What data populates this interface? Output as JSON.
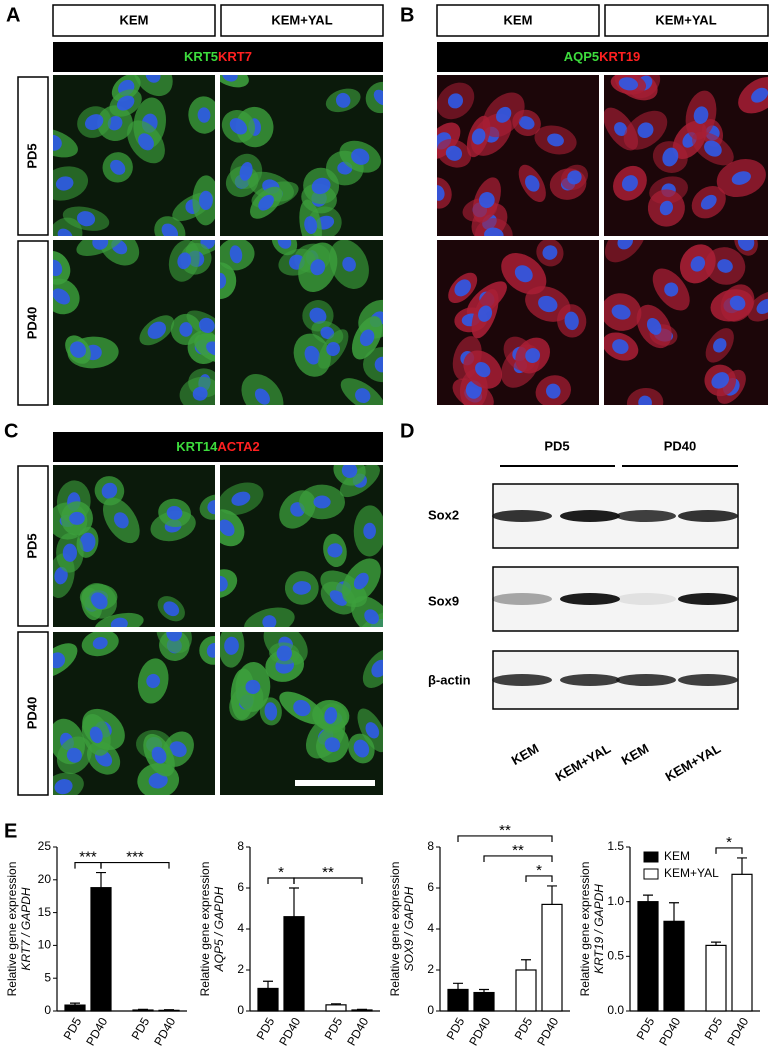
{
  "panels": {
    "A": {
      "label": "A",
      "columns": [
        "KEM",
        "KEM+YAL"
      ],
      "stain": [
        "KRT5",
        "KRT7"
      ],
      "rows": [
        "PD5",
        "PD40"
      ]
    },
    "B": {
      "label": "B",
      "columns": [
        "KEM",
        "KEM+YAL"
      ],
      "stain": [
        "AQP5",
        "KRT19"
      ]
    },
    "C": {
      "label": "C",
      "stain": [
        "KRT14",
        "ACTA2"
      ],
      "rows": [
        "PD5",
        "PD40"
      ]
    },
    "D": {
      "label": "D",
      "groups": [
        "PD5",
        "PD40"
      ],
      "blots": [
        "Sox2",
        "Sox9",
        "β-actin"
      ],
      "lanes": [
        "KEM",
        "KEM+YAL",
        "KEM",
        "KEM+YAL"
      ]
    },
    "E": {
      "label": "E"
    }
  },
  "chart_data": [
    {
      "type": "bar",
      "ylabel": [
        "Relative gene expression",
        "KRT7 / GAPDH"
      ],
      "ylim": [
        0,
        25
      ],
      "yticks": [
        0,
        5,
        10,
        15,
        20,
        25
      ],
      "series": [
        {
          "color": "#000000",
          "categories": [
            "PD5",
            "PD40"
          ],
          "values": [
            0.9,
            18.8
          ],
          "errors": [
            0.3,
            2.3
          ]
        },
        {
          "color": "#ffffff",
          "categories": [
            "PD5",
            "PD40"
          ],
          "values": [
            0.15,
            0.1
          ],
          "errors": [
            0.1,
            0.1
          ]
        }
      ],
      "annotations": [
        {
          "text": "***",
          "between": [
            0,
            1
          ]
        },
        {
          "text": "***",
          "between": [
            1,
            3
          ]
        }
      ]
    },
    {
      "type": "bar",
      "ylabel": [
        "Relative gene expression",
        "AQP5 / GAPDH"
      ],
      "ylim": [
        0,
        8
      ],
      "yticks": [
        0,
        2,
        4,
        6,
        8
      ],
      "series": [
        {
          "color": "#000000",
          "categories": [
            "PD5",
            "PD40"
          ],
          "values": [
            1.1,
            4.6
          ],
          "errors": [
            0.35,
            1.4
          ]
        },
        {
          "color": "#ffffff",
          "categories": [
            "PD5",
            "PD40"
          ],
          "values": [
            0.3,
            0.05
          ],
          "errors": [
            0.05,
            0.03
          ]
        }
      ],
      "annotations": [
        {
          "text": "*",
          "between": [
            0,
            1
          ]
        },
        {
          "text": "**",
          "between": [
            1,
            3
          ]
        }
      ]
    },
    {
      "type": "bar",
      "ylabel": [
        "Relative gene expression",
        "SOX9 / GAPDH"
      ],
      "ylim": [
        0,
        8
      ],
      "yticks": [
        0,
        2,
        4,
        6,
        8
      ],
      "series": [
        {
          "color": "#000000",
          "categories": [
            "PD5",
            "PD40"
          ],
          "values": [
            1.05,
            0.9
          ],
          "errors": [
            0.3,
            0.15
          ]
        },
        {
          "color": "#ffffff",
          "categories": [
            "PD5",
            "PD40"
          ],
          "values": [
            2.0,
            5.2
          ],
          "errors": [
            0.5,
            0.9
          ]
        }
      ],
      "annotations": [
        {
          "text": "*",
          "between": [
            2,
            3
          ]
        },
        {
          "text": "**",
          "between": [
            1,
            3
          ]
        },
        {
          "text": "**",
          "between": [
            0,
            3
          ]
        }
      ]
    },
    {
      "type": "bar",
      "ylabel": [
        "Relative gene expression",
        "KRT19 / GAPDH"
      ],
      "ylim": [
        0,
        1.5
      ],
      "yticks": [
        {
          "value": 0,
          "label": "0.0"
        },
        0.5,
        {
          "value": 1,
          "label": "1.0"
        },
        1.5
      ],
      "series": [
        {
          "name": "KEM",
          "color": "#000000",
          "categories": [
            "PD5",
            "PD40"
          ],
          "values": [
            1.0,
            0.82
          ],
          "errors": [
            0.06,
            0.17
          ]
        },
        {
          "name": "KEM+YAL",
          "color": "#ffffff",
          "categories": [
            "PD5",
            "PD40"
          ],
          "values": [
            0.6,
            1.25
          ],
          "errors": [
            0.03,
            0.15
          ]
        }
      ],
      "annotations": [
        {
          "text": "*",
          "between": [
            2,
            3
          ]
        }
      ],
      "legend": "top-left"
    }
  ]
}
